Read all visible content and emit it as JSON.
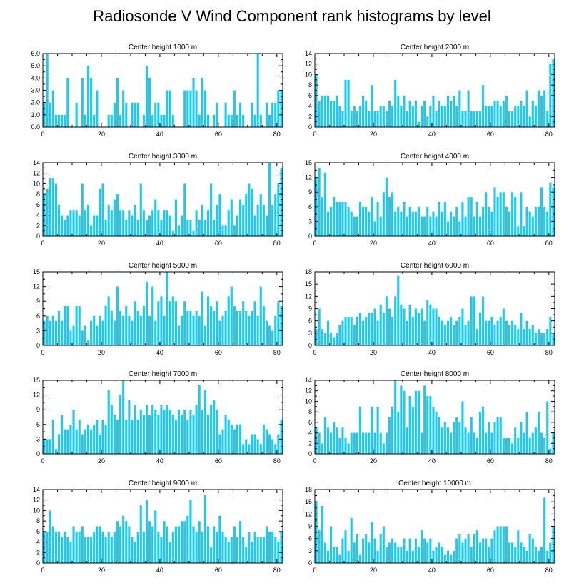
{
  "figure_title": "Radiosonde V Wind Component rank histograms by level",
  "chart_data": [
    {
      "type": "bar",
      "title": "Center height 1000 m",
      "xlim": [
        0,
        82
      ],
      "xticks": [
        0,
        20,
        40,
        60,
        80
      ],
      "ylim": [
        0,
        6
      ],
      "yticks": [
        0,
        1,
        2,
        3,
        4,
        5,
        6
      ],
      "ytick_labels": [
        "0.0",
        "1.0",
        "2.0",
        "3.0",
        "4.0",
        "5.0",
        "6.0"
      ],
      "values": [
        2,
        6,
        2,
        3,
        1,
        1,
        1,
        1,
        4,
        0,
        0,
        2,
        0,
        4,
        1,
        5,
        4,
        1,
        3,
        0,
        0,
        0,
        1,
        1,
        2,
        4,
        1,
        3,
        2,
        0,
        2,
        2,
        2,
        0,
        1,
        5,
        4,
        1,
        2,
        2,
        1,
        1,
        3,
        3,
        1,
        0,
        0,
        0,
        3,
        3,
        3,
        4,
        3,
        1,
        4,
        3,
        1,
        0,
        1,
        2,
        0,
        0,
        2,
        1,
        1,
        3,
        1,
        2,
        1,
        0,
        0,
        2,
        1,
        6,
        1,
        0,
        2,
        1,
        2,
        2,
        3,
        3
      ]
    },
    {
      "type": "bar",
      "title": "Center height 2000 m",
      "xlim": [
        0,
        82
      ],
      "xticks": [
        0,
        20,
        40,
        60,
        80
      ],
      "ylim": [
        0,
        14
      ],
      "yticks": [
        0,
        2,
        4,
        6,
        8,
        10,
        12,
        14
      ],
      "ytick_labels": [
        "0",
        "2",
        "4",
        "6",
        "8",
        "10",
        "12",
        "14"
      ],
      "values": [
        10,
        5,
        6,
        6,
        6,
        5,
        5,
        6,
        4,
        3,
        9,
        9,
        3,
        4,
        3,
        4,
        6,
        5,
        3,
        8,
        3,
        3,
        4,
        4,
        3,
        5,
        4,
        9,
        6,
        4,
        6,
        3,
        5,
        4,
        5,
        1,
        4,
        5,
        2,
        4,
        6,
        3,
        5,
        4,
        4,
        6,
        5,
        6,
        4,
        7,
        3,
        3,
        7,
        3,
        3,
        3,
        3,
        8,
        4,
        4,
        4,
        5,
        5,
        4,
        5,
        6,
        3,
        3,
        4,
        4,
        5,
        4,
        7,
        2,
        5,
        4,
        7,
        6,
        7,
        3,
        12,
        13
      ]
    },
    {
      "type": "bar",
      "title": "Center height 3000 m",
      "xlim": [
        0,
        82
      ],
      "xticks": [
        0,
        20,
        40,
        60,
        80
      ],
      "ylim": [
        0,
        14
      ],
      "yticks": [
        0,
        2,
        4,
        6,
        8,
        10,
        12,
        14
      ],
      "ytick_labels": [
        "0",
        "2",
        "4",
        "6",
        "8",
        "10",
        "12",
        "14"
      ],
      "values": [
        8,
        9,
        11,
        11,
        10,
        6,
        4,
        3,
        4,
        5,
        5,
        5,
        4,
        10,
        5,
        6,
        2,
        4,
        4,
        9,
        10,
        3,
        6,
        5,
        7,
        8,
        5,
        5,
        3,
        5,
        4,
        6,
        3,
        10,
        5,
        3,
        4,
        5,
        7,
        5,
        3,
        5,
        5,
        4,
        1,
        7,
        2,
        4,
        10,
        3,
        3,
        1,
        5,
        3,
        6,
        3,
        5,
        10,
        3,
        6,
        8,
        2,
        2,
        5,
        7,
        2,
        4,
        7,
        6,
        8,
        10,
        9,
        4,
        6,
        8,
        6,
        4,
        14,
        6,
        8,
        10,
        13
      ]
    },
    {
      "type": "bar",
      "title": "Center height 4000 m",
      "xlim": [
        0,
        82
      ],
      "xticks": [
        0,
        20,
        40,
        60,
        80
      ],
      "ylim": [
        0,
        15
      ],
      "yticks": [
        0,
        3,
        6,
        9,
        12,
        15
      ],
      "ytick_labels": [
        "0",
        "3",
        "6",
        "9",
        "12",
        "15"
      ],
      "values": [
        12,
        14,
        8,
        13,
        5,
        6,
        8,
        7,
        7,
        7,
        7,
        6,
        5,
        4,
        4,
        7,
        6,
        6,
        5,
        8,
        3,
        7,
        4,
        9,
        12,
        8,
        9,
        5,
        6,
        5,
        7,
        4,
        6,
        5,
        5,
        6,
        4,
        4,
        6,
        4,
        5,
        4,
        7,
        5,
        7,
        3,
        5,
        4,
        6,
        3,
        7,
        4,
        8,
        8,
        4,
        7,
        4,
        6,
        9,
        6,
        5,
        10,
        8,
        9,
        9,
        6,
        5,
        9,
        8,
        2,
        9,
        2,
        6,
        5,
        4,
        6,
        6,
        10,
        6,
        5,
        11,
        10
      ]
    },
    {
      "type": "bar",
      "title": "Center height 5000 m",
      "xlim": [
        0,
        82
      ],
      "xticks": [
        0,
        20,
        40,
        60,
        80
      ],
      "ylim": [
        0,
        15
      ],
      "yticks": [
        0,
        3,
        6,
        9,
        12,
        15
      ],
      "ytick_labels": [
        "0",
        "3",
        "6",
        "9",
        "12",
        "15"
      ],
      "values": [
        5,
        6,
        5,
        6,
        5,
        7,
        5,
        8,
        8,
        3,
        4,
        8,
        8,
        3,
        4,
        1,
        5,
        6,
        4,
        6,
        5,
        8,
        10,
        7,
        5,
        12,
        7,
        6,
        8,
        6,
        5,
        9,
        7,
        6,
        8,
        13,
        6,
        12,
        5,
        9,
        10,
        6,
        15,
        9,
        10,
        9,
        4,
        6,
        9,
        7,
        7,
        6,
        7,
        6,
        11,
        4,
        10,
        8,
        7,
        9,
        5,
        6,
        7,
        10,
        12,
        8,
        7,
        7,
        9,
        7,
        6,
        7,
        9,
        6,
        12,
        8,
        5,
        4,
        3,
        6,
        9,
        8
      ]
    },
    {
      "type": "bar",
      "title": "Center height 6000 m",
      "xlim": [
        0,
        82
      ],
      "xticks": [
        0,
        20,
        40,
        60,
        80
      ],
      "ylim": [
        0,
        18
      ],
      "yticks": [
        0,
        3,
        6,
        9,
        12,
        15,
        18
      ],
      "ytick_labels": [
        "0",
        "3",
        "6",
        "9",
        "12",
        "15",
        "18"
      ],
      "values": [
        4,
        9,
        4,
        3,
        6,
        3,
        2,
        3,
        5,
        6,
        7,
        7,
        7,
        5,
        7,
        8,
        6,
        7,
        8,
        8,
        9,
        6,
        10,
        8,
        12,
        9,
        7,
        12,
        17,
        10,
        9,
        6,
        10,
        7,
        9,
        8,
        9,
        6,
        11,
        10,
        9,
        9,
        7,
        6,
        5,
        6,
        7,
        5,
        6,
        7,
        9,
        5,
        6,
        12,
        12,
        4,
        8,
        12,
        6,
        6,
        7,
        5,
        6,
        7,
        9,
        6,
        5,
        6,
        5,
        4,
        8,
        4,
        6,
        4,
        5,
        3,
        4,
        3,
        3,
        4,
        7,
        3
      ]
    },
    {
      "type": "bar",
      "title": "Center height 7000 m",
      "xlim": [
        0,
        82
      ],
      "xticks": [
        0,
        20,
        40,
        60,
        80
      ],
      "ylim": [
        0,
        15
      ],
      "yticks": [
        0,
        3,
        6,
        9,
        12,
        15
      ],
      "ytick_labels": [
        "0",
        "3",
        "6",
        "9",
        "12",
        "15"
      ],
      "values": [
        3,
        3,
        3,
        7,
        1,
        4,
        8,
        5,
        5,
        6,
        9,
        5,
        7,
        4,
        5,
        6,
        5,
        6,
        7,
        4,
        7,
        6,
        13,
        10,
        8,
        7,
        12,
        15,
        7,
        11,
        7,
        10,
        7,
        9,
        8,
        10,
        8,
        10,
        9,
        8,
        10,
        9,
        10,
        9,
        8,
        7,
        9,
        8,
        9,
        7,
        9,
        8,
        10,
        14,
        9,
        13,
        8,
        10,
        11,
        9,
        4,
        5,
        8,
        7,
        6,
        5,
        6,
        6,
        2,
        3,
        2,
        4,
        4,
        3,
        2,
        6,
        5,
        4,
        3,
        2,
        4,
        7
      ]
    },
    {
      "type": "bar",
      "title": "Center height 8000 m",
      "xlim": [
        0,
        82
      ],
      "xticks": [
        0,
        20,
        40,
        60,
        80
      ],
      "ylim": [
        0,
        14
      ],
      "yticks": [
        0,
        2,
        4,
        6,
        8,
        10,
        12,
        14
      ],
      "ytick_labels": [
        "0",
        "2",
        "4",
        "6",
        "8",
        "10",
        "12",
        "14"
      ],
      "values": [
        5,
        4,
        2,
        7,
        5,
        4,
        6,
        5,
        3,
        5,
        3,
        2,
        4,
        4,
        4,
        9,
        4,
        4,
        4,
        9,
        4,
        9,
        4,
        2,
        4,
        7,
        9,
        14,
        8,
        13,
        12,
        5,
        11,
        9,
        12,
        12,
        4,
        13,
        11,
        11,
        9,
        8,
        7,
        5,
        6,
        5,
        4,
        6,
        7,
        6,
        10,
        5,
        4,
        7,
        4,
        3,
        8,
        9,
        4,
        6,
        4,
        6,
        7,
        7,
        3,
        3,
        3,
        2,
        5,
        3,
        6,
        4,
        8,
        3,
        4,
        5,
        8,
        4,
        3,
        10,
        1,
        4
      ]
    },
    {
      "type": "bar",
      "title": "Center height 9000 m",
      "xlim": [
        0,
        82
      ],
      "xticks": [
        0,
        20,
        40,
        60,
        80
      ],
      "ylim": [
        0,
        14
      ],
      "yticks": [
        0,
        2,
        4,
        6,
        8,
        10,
        12,
        14
      ],
      "ytick_labels": [
        "0",
        "2",
        "4",
        "6",
        "8",
        "10",
        "12",
        "14"
      ],
      "values": [
        6,
        6,
        10,
        7,
        6,
        6,
        5,
        6,
        5,
        4,
        7,
        6,
        6,
        7,
        5,
        5,
        5,
        6,
        7,
        7,
        6,
        5,
        6,
        5,
        6,
        8,
        7,
        9,
        8,
        7,
        5,
        4,
        6,
        11,
        6,
        12,
        8,
        7,
        10,
        6,
        5,
        8,
        7,
        4,
        6,
        7,
        7,
        8,
        8,
        9,
        12,
        7,
        6,
        8,
        6,
        13,
        7,
        3,
        7,
        6,
        9,
        6,
        5,
        4,
        5,
        7,
        5,
        8,
        5,
        3,
        6,
        4,
        6,
        5,
        5,
        5,
        7,
        6,
        6,
        5,
        4,
        6
      ]
    },
    {
      "type": "bar",
      "title": "Center height 10000 m",
      "xlim": [
        0,
        82
      ],
      "xticks": [
        0,
        20,
        40,
        60,
        80
      ],
      "ylim": [
        0,
        18
      ],
      "yticks": [
        0,
        3,
        6,
        9,
        12,
        15,
        18
      ],
      "ytick_labels": [
        "0",
        "3",
        "6",
        "9",
        "12",
        "15",
        "18"
      ],
      "values": [
        15,
        8,
        14,
        5,
        3,
        9,
        4,
        4,
        2,
        6,
        8,
        3,
        11,
        5,
        7,
        2,
        6,
        7,
        5,
        10,
        6,
        3,
        7,
        9,
        4,
        5,
        6,
        5,
        4,
        4,
        6,
        3,
        6,
        3,
        6,
        4,
        8,
        6,
        5,
        6,
        3,
        4,
        5,
        4,
        2,
        3,
        2,
        3,
        6,
        7,
        5,
        6,
        7,
        4,
        7,
        8,
        5,
        6,
        6,
        4,
        6,
        8,
        9,
        9,
        9,
        9,
        5,
        5,
        4,
        8,
        5,
        4,
        3,
        7,
        6,
        4,
        3,
        4,
        16,
        3,
        5,
        9
      ]
    }
  ]
}
